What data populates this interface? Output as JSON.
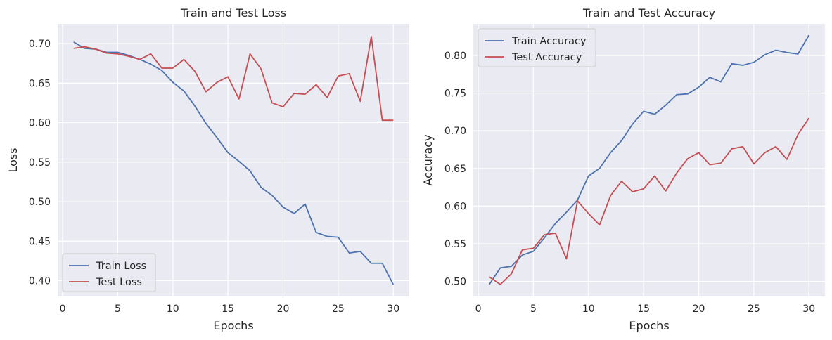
{
  "chart_data": [
    {
      "type": "line",
      "title": "Train and Test Loss",
      "xlabel": "Epochs",
      "ylabel": "Loss",
      "xlim": [
        -0.45,
        31.45
      ],
      "ylim": [
        0.38,
        0.725
      ],
      "xticks": [
        0,
        5,
        10,
        15,
        20,
        25,
        30
      ],
      "yticks": [
        0.4,
        0.45,
        0.5,
        0.55,
        0.6,
        0.65,
        0.7
      ],
      "ytick_labels": [
        "0.40",
        "0.45",
        "0.50",
        "0.55",
        "0.60",
        "0.65",
        "0.70"
      ],
      "grid": true,
      "legend_position": "lower-left",
      "x": [
        1,
        2,
        3,
        4,
        5,
        6,
        7,
        8,
        9,
        10,
        11,
        12,
        13,
        14,
        15,
        16,
        17,
        18,
        19,
        20,
        21,
        22,
        23,
        24,
        25,
        26,
        27,
        28,
        29,
        30
      ],
      "series": [
        {
          "name": "Train Loss",
          "color": "#4c72b0",
          "values": [
            0.702,
            0.694,
            0.693,
            0.689,
            0.689,
            0.685,
            0.68,
            0.674,
            0.666,
            0.651,
            0.64,
            0.621,
            0.599,
            0.581,
            0.562,
            0.551,
            0.539,
            0.518,
            0.508,
            0.493,
            0.485,
            0.497,
            0.461,
            0.456,
            0.455,
            0.435,
            0.437,
            0.422,
            0.422,
            0.395
          ]
        },
        {
          "name": "Test Loss",
          "color": "#c44e52",
          "values": [
            0.694,
            0.696,
            0.693,
            0.688,
            0.687,
            0.684,
            0.68,
            0.687,
            0.669,
            0.669,
            0.68,
            0.665,
            0.639,
            0.651,
            0.658,
            0.63,
            0.687,
            0.668,
            0.625,
            0.62,
            0.637,
            0.636,
            0.648,
            0.632,
            0.659,
            0.662,
            0.627,
            0.709,
            0.603,
            0.603
          ]
        }
      ]
    },
    {
      "type": "line",
      "title": "Train and Test Accuracy",
      "xlabel": "Epochs",
      "ylabel": "Accuracy",
      "xlim": [
        -0.45,
        31.45
      ],
      "ylim": [
        0.48,
        0.842
      ],
      "xticks": [
        0,
        5,
        10,
        15,
        20,
        25,
        30
      ],
      "yticks": [
        0.5,
        0.55,
        0.6,
        0.65,
        0.7,
        0.75,
        0.8
      ],
      "ytick_labels": [
        "0.50",
        "0.55",
        "0.60",
        "0.65",
        "0.70",
        "0.75",
        "0.80"
      ],
      "grid": true,
      "legend_position": "upper-left",
      "x": [
        1,
        2,
        3,
        4,
        5,
        6,
        7,
        8,
        9,
        10,
        11,
        12,
        13,
        14,
        15,
        16,
        17,
        18,
        19,
        20,
        21,
        22,
        23,
        24,
        25,
        26,
        27,
        28,
        29,
        30
      ],
      "series": [
        {
          "name": "Train Accuracy",
          "color": "#4c72b0",
          "values": [
            0.496,
            0.518,
            0.52,
            0.535,
            0.54,
            0.558,
            0.577,
            0.592,
            0.608,
            0.64,
            0.65,
            0.671,
            0.687,
            0.709,
            0.726,
            0.722,
            0.734,
            0.748,
            0.749,
            0.758,
            0.771,
            0.765,
            0.789,
            0.787,
            0.791,
            0.801,
            0.807,
            0.804,
            0.802,
            0.827
          ]
        },
        {
          "name": "Test Accuracy",
          "color": "#c44e52",
          "values": [
            0.506,
            0.496,
            0.51,
            0.542,
            0.544,
            0.562,
            0.564,
            0.53,
            0.607,
            0.59,
            0.575,
            0.614,
            0.633,
            0.619,
            0.623,
            0.64,
            0.62,
            0.644,
            0.663,
            0.671,
            0.655,
            0.657,
            0.676,
            0.679,
            0.656,
            0.671,
            0.679,
            0.662,
            0.695,
            0.717
          ]
        }
      ]
    }
  ]
}
